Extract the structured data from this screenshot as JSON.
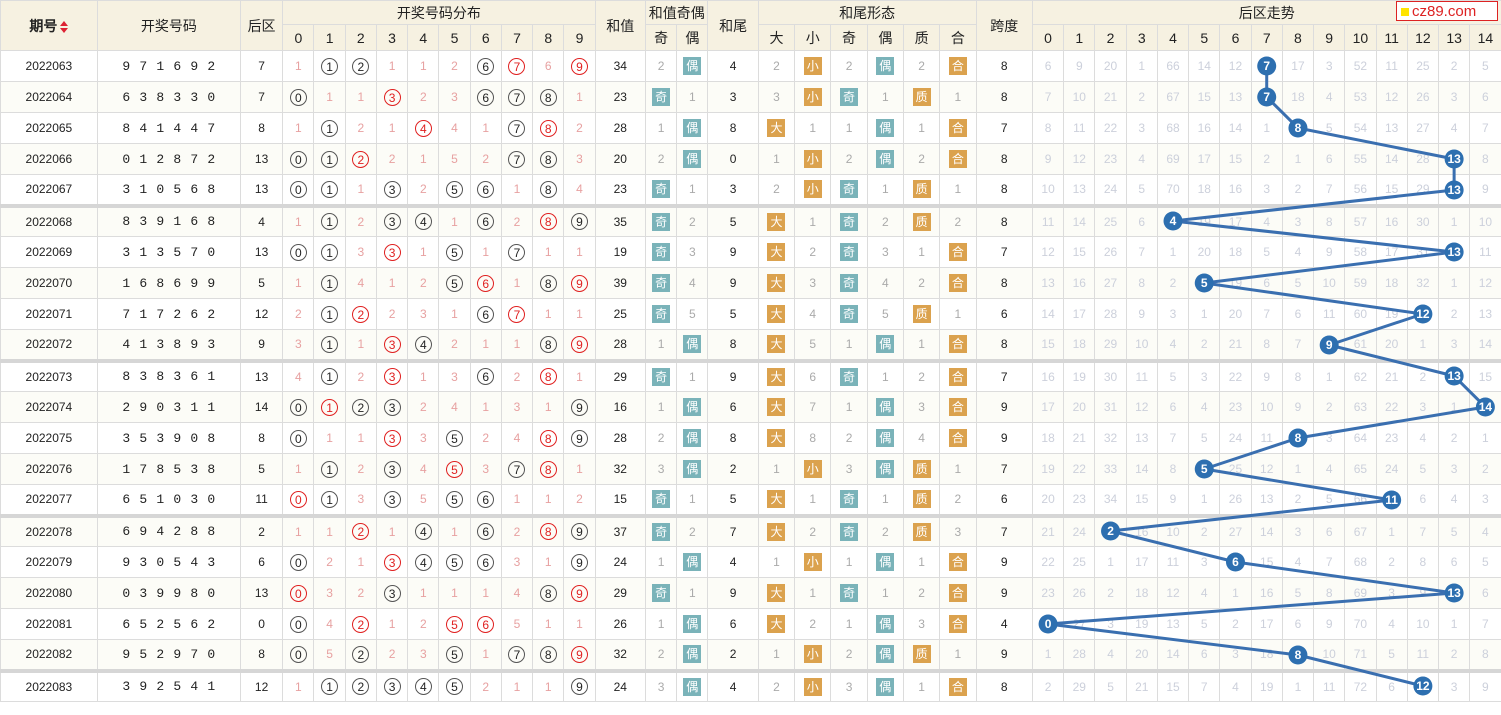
{
  "logo": "cz89.com",
  "header": {
    "period": "期号",
    "numbers": "开奖号码",
    "back": "后区",
    "distribution": "开奖号码分布",
    "sum": "和值",
    "sum_parity": "和值奇偶",
    "odd": "奇",
    "even": "偶",
    "tail": "和尾",
    "tail_form": "和尾形态",
    "big": "大",
    "small": "小",
    "prime": "质",
    "composite": "合",
    "span": "跨度",
    "trend": "后区走势",
    "dist_digits": [
      "0",
      "1",
      "2",
      "3",
      "4",
      "5",
      "6",
      "7",
      "8",
      "9"
    ],
    "trend_digits": [
      "0",
      "1",
      "2",
      "3",
      "4",
      "5",
      "6",
      "7",
      "8",
      "9",
      "10",
      "11",
      "12",
      "13",
      "14"
    ]
  },
  "rows": [
    {
      "period": "2022063",
      "nums": [
        9,
        7,
        1,
        6,
        9,
        2
      ],
      "back": 7,
      "dist": [
        "1",
        "①",
        "②",
        "1",
        "1",
        "2",
        "⑥",
        "⑦r",
        "6",
        "⑨r"
      ],
      "sum": "34",
      "sp": [
        "2",
        "偶"
      ],
      "tail": "4",
      "bs": [
        "2",
        "小"
      ],
      "oe": [
        "2",
        "偶"
      ],
      "pc": [
        "2",
        "合"
      ],
      "span": "8",
      "trend": [
        "6",
        "9",
        "20",
        "1",
        "66",
        "14",
        "12",
        "*",
        "17",
        "3",
        "52",
        "11",
        "25",
        "2",
        "5"
      ]
    },
    {
      "period": "2022064",
      "nums": [
        6,
        3,
        8,
        3,
        3,
        0
      ],
      "back": 7,
      "dist": [
        "⓪",
        "1",
        "1",
        "③r",
        "2",
        "3",
        "⑥",
        "⑦",
        "⑧",
        "1"
      ],
      "sum": "23",
      "sp": [
        "奇",
        "1"
      ],
      "tail": "3",
      "bs": [
        "3",
        "小"
      ],
      "oe": [
        "奇",
        "1"
      ],
      "pc": [
        "质",
        "1"
      ],
      "span": "8",
      "trend": [
        "7",
        "10",
        "21",
        "2",
        "67",
        "15",
        "13",
        "*",
        "18",
        "4",
        "53",
        "12",
        "26",
        "3",
        "6"
      ]
    },
    {
      "period": "2022065",
      "nums": [
        8,
        4,
        1,
        4,
        4,
        7
      ],
      "back": 8,
      "dist": [
        "1",
        "①",
        "2",
        "1",
        "④r",
        "4",
        "1",
        "⑦",
        "⑧r",
        "2"
      ],
      "sum": "28",
      "sp": [
        "1",
        "偶"
      ],
      "tail": "8",
      "bs": [
        "大",
        "1"
      ],
      "oe": [
        "1",
        "偶"
      ],
      "pc": [
        "1",
        "合"
      ],
      "span": "7",
      "trend": [
        "8",
        "11",
        "22",
        "3",
        "68",
        "16",
        "14",
        "1",
        "*",
        "5",
        "54",
        "13",
        "27",
        "4",
        "7"
      ]
    },
    {
      "period": "2022066",
      "nums": [
        0,
        1,
        2,
        8,
        7,
        2
      ],
      "back": 13,
      "dist": [
        "⓪",
        "①",
        "②r",
        "2",
        "1",
        "5",
        "2",
        "⑦",
        "⑧",
        "3"
      ],
      "sum": "20",
      "sp": [
        "2",
        "偶"
      ],
      "tail": "0",
      "bs": [
        "1",
        "小"
      ],
      "oe": [
        "2",
        "偶"
      ],
      "pc": [
        "2",
        "合"
      ],
      "span": "8",
      "trend": [
        "9",
        "12",
        "23",
        "4",
        "69",
        "17",
        "15",
        "2",
        "1",
        "6",
        "55",
        "14",
        "28",
        "*",
        "8"
      ]
    },
    {
      "period": "2022067",
      "nums": [
        3,
        1,
        0,
        5,
        6,
        8
      ],
      "back": 13,
      "dist": [
        "⓪",
        "①",
        "1",
        "③",
        "2",
        "⑤",
        "⑥",
        "1",
        "⑧",
        "4"
      ],
      "sum": "23",
      "sp": [
        "奇",
        "1"
      ],
      "tail": "3",
      "bs": [
        "2",
        "小"
      ],
      "oe": [
        "奇",
        "1"
      ],
      "pc": [
        "质",
        "1"
      ],
      "span": "8",
      "trend": [
        "10",
        "13",
        "24",
        "5",
        "70",
        "18",
        "16",
        "3",
        "2",
        "7",
        "56",
        "15",
        "29",
        "*",
        "9"
      ],
      "sep": true
    },
    {
      "period": "2022068",
      "nums": [
        8,
        3,
        9,
        1,
        6,
        8
      ],
      "back": 4,
      "dist": [
        "1",
        "①",
        "2",
        "③",
        "④",
        "1",
        "⑥",
        "2",
        "⑧r",
        "⑨"
      ],
      "sum": "35",
      "sp": [
        "奇",
        "2"
      ],
      "tail": "5",
      "bs": [
        "大",
        "1"
      ],
      "oe": [
        "奇",
        "2"
      ],
      "pc": [
        "质",
        "2"
      ],
      "span": "8",
      "trend": [
        "11",
        "14",
        "25",
        "6",
        "*",
        "19",
        "17",
        "4",
        "3",
        "8",
        "57",
        "16",
        "30",
        "1",
        "10"
      ]
    },
    {
      "period": "2022069",
      "nums": [
        3,
        1,
        3,
        5,
        7,
        0
      ],
      "back": 13,
      "dist": [
        "⓪",
        "①",
        "3",
        "③r",
        "1",
        "⑤",
        "1",
        "⑦",
        "1",
        "1"
      ],
      "sum": "19",
      "sp": [
        "奇",
        "3"
      ],
      "tail": "9",
      "bs": [
        "大",
        "2"
      ],
      "oe": [
        "奇",
        "3"
      ],
      "pc": [
        "1",
        "合"
      ],
      "span": "7",
      "trend": [
        "12",
        "15",
        "26",
        "7",
        "1",
        "20",
        "18",
        "5",
        "4",
        "9",
        "58",
        "17",
        "31",
        "*",
        "11"
      ]
    },
    {
      "period": "2022070",
      "nums": [
        1,
        6,
        8,
        6,
        9,
        9
      ],
      "back": 5,
      "dist": [
        "1",
        "①",
        "4",
        "1",
        "2",
        "⑤",
        "⑥r",
        "1",
        "⑧",
        "⑨r"
      ],
      "sum": "39",
      "sp": [
        "奇",
        "4"
      ],
      "tail": "9",
      "bs": [
        "大",
        "3"
      ],
      "oe": [
        "奇",
        "4"
      ],
      "pc": [
        "2",
        "合"
      ],
      "span": "8",
      "trend": [
        "13",
        "16",
        "27",
        "8",
        "2",
        "*",
        "19",
        "6",
        "5",
        "10",
        "59",
        "18",
        "32",
        "1",
        "12"
      ]
    },
    {
      "period": "2022071",
      "nums": [
        7,
        1,
        7,
        2,
        6,
        2
      ],
      "back": 12,
      "dist": [
        "2",
        "①",
        "②r",
        "2",
        "3",
        "1",
        "⑥",
        "⑦r",
        "1",
        "1"
      ],
      "sum": "25",
      "sp": [
        "奇",
        "5"
      ],
      "tail": "5",
      "bs": [
        "大",
        "4"
      ],
      "oe": [
        "奇",
        "5"
      ],
      "pc": [
        "质",
        "1"
      ],
      "span": "6",
      "trend": [
        "14",
        "17",
        "28",
        "9",
        "3",
        "1",
        "20",
        "7",
        "6",
        "11",
        "60",
        "19",
        "*",
        "2",
        "13"
      ]
    },
    {
      "period": "2022072",
      "nums": [
        4,
        1,
        3,
        8,
        9,
        3
      ],
      "back": 9,
      "dist": [
        "3",
        "①",
        "1",
        "③r",
        "④",
        "2",
        "1",
        "1",
        "⑧",
        "⑨r"
      ],
      "sum": "28",
      "sp": [
        "1",
        "偶"
      ],
      "tail": "8",
      "bs": [
        "大",
        "5"
      ],
      "oe": [
        "1",
        "偶"
      ],
      "pc": [
        "1",
        "合"
      ],
      "span": "8",
      "trend": [
        "15",
        "18",
        "29",
        "10",
        "4",
        "2",
        "21",
        "8",
        "7",
        "*",
        "61",
        "20",
        "1",
        "3",
        "14"
      ],
      "sep": true
    },
    {
      "period": "2022073",
      "nums": [
        8,
        3,
        8,
        3,
        6,
        1
      ],
      "back": 13,
      "dist": [
        "4",
        "①",
        "2",
        "③r",
        "1",
        "3",
        "⑥",
        "2",
        "⑧r",
        "1"
      ],
      "sum": "29",
      "sp": [
        "奇",
        "1"
      ],
      "tail": "9",
      "bs": [
        "大",
        "6"
      ],
      "oe": [
        "奇",
        "1"
      ],
      "pc": [
        "2",
        "合"
      ],
      "span": "7",
      "trend": [
        "16",
        "19",
        "30",
        "11",
        "5",
        "3",
        "22",
        "9",
        "8",
        "1",
        "62",
        "21",
        "2",
        "*",
        "15"
      ]
    },
    {
      "period": "2022074",
      "nums": [
        2,
        9,
        0,
        3,
        1,
        1
      ],
      "back": 14,
      "dist": [
        "⓪",
        "①r",
        "②",
        "③",
        "2",
        "4",
        "1",
        "3",
        "1",
        "⑨"
      ],
      "sum": "16",
      "sp": [
        "1",
        "偶"
      ],
      "tail": "6",
      "bs": [
        "大",
        "7"
      ],
      "oe": [
        "1",
        "偶"
      ],
      "pc": [
        "3",
        "合"
      ],
      "span": "9",
      "trend": [
        "17",
        "20",
        "31",
        "12",
        "6",
        "4",
        "23",
        "10",
        "9",
        "2",
        "63",
        "22",
        "3",
        "1",
        "*"
      ]
    },
    {
      "period": "2022075",
      "nums": [
        3,
        5,
        3,
        9,
        0,
        8
      ],
      "back": 8,
      "dist": [
        "⓪",
        "1",
        "1",
        "③r",
        "3",
        "⑤",
        "2",
        "4",
        "⑧r",
        "⑨"
      ],
      "sum": "28",
      "sp": [
        "2",
        "偶"
      ],
      "tail": "8",
      "bs": [
        "大",
        "8"
      ],
      "oe": [
        "2",
        "偶"
      ],
      "pc": [
        "4",
        "合"
      ],
      "span": "9",
      "trend": [
        "18",
        "21",
        "32",
        "13",
        "7",
        "5",
        "24",
        "11",
        "*",
        "3",
        "64",
        "23",
        "4",
        "2",
        "1"
      ]
    },
    {
      "period": "2022076",
      "nums": [
        1,
        7,
        8,
        5,
        3,
        8
      ],
      "back": 5,
      "dist": [
        "1",
        "①",
        "2",
        "③",
        "4",
        "⑤r",
        "3",
        "⑦",
        "⑧r",
        "1"
      ],
      "sum": "32",
      "sp": [
        "3",
        "偶"
      ],
      "tail": "2",
      "bs": [
        "1",
        "小"
      ],
      "oe": [
        "3",
        "偶"
      ],
      "pc": [
        "质",
        "1"
      ],
      "span": "7",
      "trend": [
        "19",
        "22",
        "33",
        "14",
        "8",
        "*",
        "25",
        "12",
        "1",
        "4",
        "65",
        "24",
        "5",
        "3",
        "2"
      ]
    },
    {
      "period": "2022077",
      "nums": [
        6,
        5,
        1,
        0,
        3,
        0
      ],
      "back": 11,
      "dist": [
        "⓪r",
        "①",
        "3",
        "③",
        "5",
        "⑤",
        "⑥",
        "1",
        "1",
        "2"
      ],
      "sum": "15",
      "sp": [
        "奇",
        "1"
      ],
      "tail": "5",
      "bs": [
        "大",
        "1"
      ],
      "oe": [
        "奇",
        "1"
      ],
      "pc": [
        "质",
        "2"
      ],
      "span": "6",
      "trend": [
        "20",
        "23",
        "34",
        "15",
        "9",
        "1",
        "26",
        "13",
        "2",
        "5",
        "66",
        "*",
        "6",
        "4",
        "3"
      ],
      "sep": true
    },
    {
      "period": "2022078",
      "nums": [
        6,
        9,
        4,
        2,
        8,
        8
      ],
      "back": 2,
      "dist": [
        "1",
        "1",
        "②r",
        "1",
        "④",
        "1",
        "⑥",
        "2",
        "⑧r",
        "⑨"
      ],
      "sum": "37",
      "sp": [
        "奇",
        "2"
      ],
      "tail": "7",
      "bs": [
        "大",
        "2"
      ],
      "oe": [
        "奇",
        "2"
      ],
      "pc": [
        "质",
        "3"
      ],
      "span": "7",
      "trend": [
        "21",
        "24",
        "*",
        "16",
        "10",
        "2",
        "27",
        "14",
        "3",
        "6",
        "67",
        "1",
        "7",
        "5",
        "4"
      ]
    },
    {
      "period": "2022079",
      "nums": [
        9,
        3,
        0,
        5,
        4,
        3
      ],
      "back": 6,
      "dist": [
        "⓪",
        "2",
        "1",
        "③r",
        "④",
        "⑤",
        "⑥",
        "3",
        "1",
        "⑨"
      ],
      "sum": "24",
      "sp": [
        "1",
        "偶"
      ],
      "tail": "4",
      "bs": [
        "1",
        "小"
      ],
      "oe": [
        "1",
        "偶"
      ],
      "pc": [
        "1",
        "合"
      ],
      "span": "9",
      "trend": [
        "22",
        "25",
        "1",
        "17",
        "11",
        "3",
        "*",
        "15",
        "4",
        "7",
        "68",
        "2",
        "8",
        "6",
        "5"
      ]
    },
    {
      "period": "2022080",
      "nums": [
        0,
        3,
        9,
        9,
        8,
        0
      ],
      "back": 13,
      "dist": [
        "⓪r",
        "3",
        "2",
        "③",
        "1",
        "1",
        "1",
        "4",
        "⑧",
        "⑨r"
      ],
      "sum": "29",
      "sp": [
        "奇",
        "1"
      ],
      "tail": "9",
      "bs": [
        "大",
        "1"
      ],
      "oe": [
        "奇",
        "1"
      ],
      "pc": [
        "2",
        "合"
      ],
      "span": "9",
      "trend": [
        "23",
        "26",
        "2",
        "18",
        "12",
        "4",
        "1",
        "16",
        "5",
        "8",
        "69",
        "3",
        "9",
        "*",
        "6"
      ]
    },
    {
      "period": "2022081",
      "nums": [
        6,
        5,
        2,
        5,
        6,
        2
      ],
      "back": 0,
      "dist": [
        "⓪",
        "4",
        "②r",
        "1",
        "2",
        "⑤r",
        "⑥r",
        "5",
        "1",
        "1"
      ],
      "sum": "26",
      "sp": [
        "1",
        "偶"
      ],
      "tail": "6",
      "bs": [
        "大",
        "2"
      ],
      "oe": [
        "1",
        "偶"
      ],
      "pc": [
        "3",
        "合"
      ],
      "span": "4",
      "trend": [
        "*",
        "27",
        "3",
        "19",
        "13",
        "5",
        "2",
        "17",
        "6",
        "9",
        "70",
        "4",
        "10",
        "1",
        "7"
      ]
    },
    {
      "period": "2022082",
      "nums": [
        9,
        5,
        2,
        9,
        7,
        0
      ],
      "back": 8,
      "dist": [
        "⓪",
        "5",
        "②",
        "2",
        "3",
        "⑤",
        "1",
        "⑦",
        "⑧",
        "⑨r"
      ],
      "sum": "32",
      "sp": [
        "2",
        "偶"
      ],
      "tail": "2",
      "bs": [
        "1",
        "小"
      ],
      "oe": [
        "2",
        "偶"
      ],
      "pc": [
        "质",
        "1"
      ],
      "span": "9",
      "trend": [
        "1",
        "28",
        "4",
        "20",
        "14",
        "6",
        "3",
        "18",
        "*",
        "10",
        "71",
        "5",
        "11",
        "2",
        "8"
      ],
      "sep": true
    },
    {
      "period": "2022083",
      "nums": [
        3,
        9,
        2,
        5,
        4,
        1
      ],
      "back": 12,
      "dist": [
        "1",
        "①",
        "②",
        "③",
        "④",
        "⑤",
        "2",
        "1",
        "1",
        "⑨"
      ],
      "sum": "24",
      "sp": [
        "3",
        "偶"
      ],
      "tail": "4",
      "bs": [
        "2",
        "小"
      ],
      "oe": [
        "3",
        "偶"
      ],
      "pc": [
        "1",
        "合"
      ],
      "span": "8",
      "trend": [
        "2",
        "29",
        "5",
        "21",
        "15",
        "7",
        "4",
        "19",
        "1",
        "11",
        "72",
        "6",
        "*",
        "3",
        "9"
      ]
    }
  ],
  "colors": {
    "trend_ball": "#2d6fb0",
    "line": "#3a6fb0",
    "red": "#e02020",
    "odd": "#7ab3b9",
    "big": "#dba24e"
  }
}
